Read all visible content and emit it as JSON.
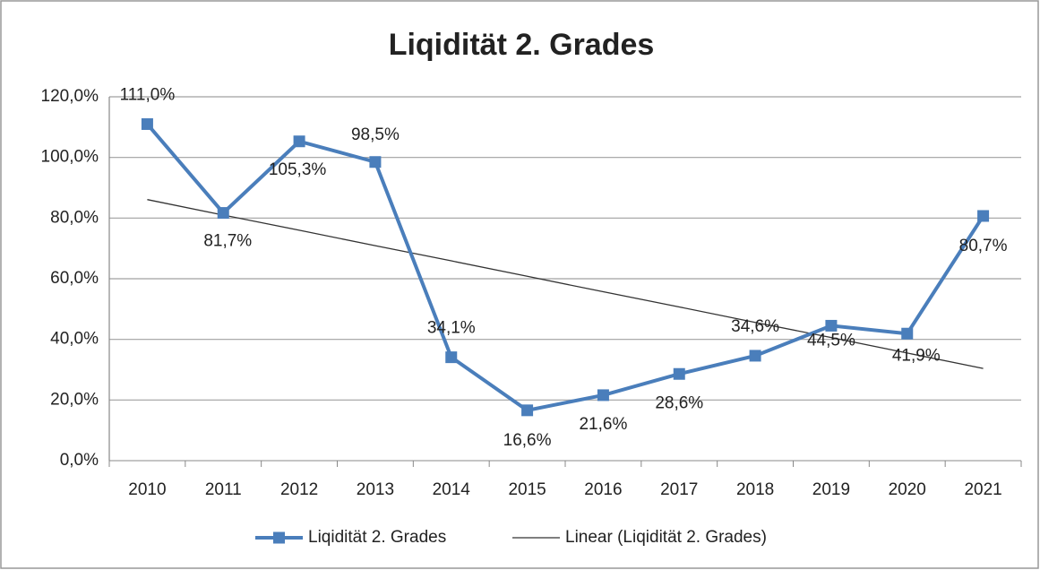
{
  "chart_data": {
    "type": "line",
    "title": "Liqidität 2. Grades",
    "categories": [
      "2010",
      "2011",
      "2012",
      "2013",
      "2014",
      "2015",
      "2016",
      "2017",
      "2018",
      "2019",
      "2020",
      "2021"
    ],
    "series": [
      {
        "name": "Liqidität 2. Grades",
        "color": "#4a7ebb",
        "values": [
          111.0,
          81.7,
          105.3,
          98.5,
          34.1,
          16.6,
          21.6,
          28.6,
          34.6,
          44.5,
          41.9,
          80.7
        ],
        "value_labels": [
          "111,0%",
          "81,7%",
          "105,3%",
          "98,5%",
          "34,1%",
          "16,6%",
          "21,6%",
          "28,6%",
          "34,6%",
          "44,5%",
          "41,9%",
          "80,7%"
        ]
      },
      {
        "name": "Linear (Liqidität 2. Grades)",
        "color": "#333333",
        "values": [
          86.1,
          81.0,
          76.0,
          70.9,
          65.9,
          60.8,
          55.7,
          50.7,
          45.6,
          40.6,
          35.5,
          30.4
        ]
      }
    ],
    "ylim": [
      0,
      120
    ],
    "yticks": [
      {
        "value": 0,
        "label": "0,0%"
      },
      {
        "value": 20,
        "label": "20,0%"
      },
      {
        "value": 40,
        "label": "40,0%"
      },
      {
        "value": 60,
        "label": "60,0%"
      },
      {
        "value": 80,
        "label": "80,0%"
      },
      {
        "value": 100,
        "label": "100,0%"
      },
      {
        "value": 120,
        "label": "120,0%"
      }
    ],
    "grid": true,
    "legend": "bottom"
  }
}
